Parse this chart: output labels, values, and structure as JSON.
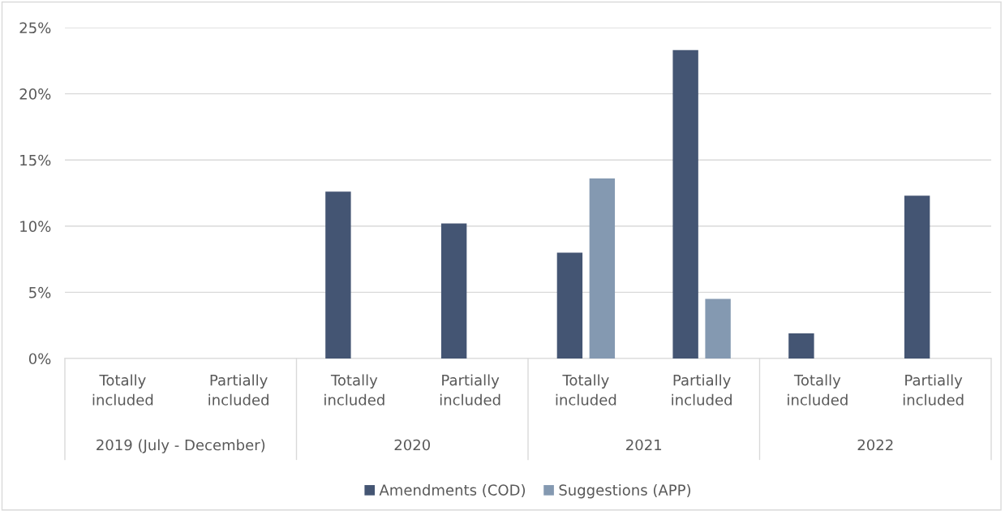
{
  "chart_data": {
    "type": "bar",
    "categories": [
      "Totally\nincluded",
      "Partially\nincluded",
      "Totally\nincluded",
      "Partially\nincluded",
      "Totally\nincluded",
      "Partially\nincluded",
      "Totally\nincluded",
      "Partially\nincluded"
    ],
    "annotations": [
      "2019 (July - December)",
      "2020",
      "2021",
      "2022"
    ],
    "series": [
      {
        "name": "Amendments (COD)",
        "color": "#445573",
        "values": [
          0,
          0,
          12.6,
          10.2,
          8.0,
          23.3,
          1.9,
          12.3
        ]
      },
      {
        "name": "Suggestions (APP)",
        "color": "#8499b1",
        "values": [
          0,
          0,
          0,
          0,
          13.6,
          4.5,
          0,
          0
        ]
      }
    ],
    "ylim": [
      0,
      25
    ],
    "yticks": [
      {
        "value": 0,
        "label": "0%"
      },
      {
        "value": 5,
        "label": "5%"
      },
      {
        "value": 10,
        "label": "10%"
      },
      {
        "value": 15,
        "label": "15%"
      },
      {
        "value": 20,
        "label": "20%"
      },
      {
        "value": 25,
        "label": "25%"
      }
    ],
    "grid": "y",
    "legend": "bottom"
  }
}
